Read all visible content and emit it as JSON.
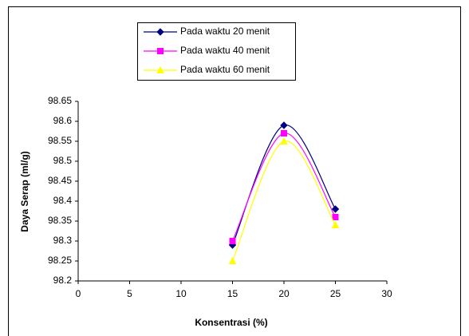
{
  "chart_data": {
    "type": "line",
    "x_label": "Konsentrasi (%)",
    "y_label": "Daya Serap (ml/g)",
    "x": [
      15,
      20,
      25
    ],
    "series": [
      {
        "name": "Pada waktu 20 menit",
        "color": "#000080",
        "marker": "diamond",
        "values": [
          98.29,
          98.59,
          98.38
        ]
      },
      {
        "name": "Pada waktu 40 menit",
        "color": "#ff00ff",
        "marker": "square",
        "values": [
          98.3,
          98.57,
          98.36
        ]
      },
      {
        "name": "Pada waktu 60 menit",
        "color": "#ffff00",
        "marker": "triangle",
        "values": [
          98.25,
          98.55,
          98.34
        ]
      }
    ],
    "xlim": [
      0,
      30
    ],
    "xticks": [
      0,
      5,
      10,
      15,
      20,
      25,
      30
    ],
    "ylim": [
      98.2,
      98.65
    ],
    "yticks": [
      98.2,
      98.25,
      98.3,
      98.35,
      98.4,
      98.45,
      98.5,
      98.55,
      98.6,
      98.65
    ],
    "smooth": true,
    "grid": false,
    "legend": "top"
  }
}
